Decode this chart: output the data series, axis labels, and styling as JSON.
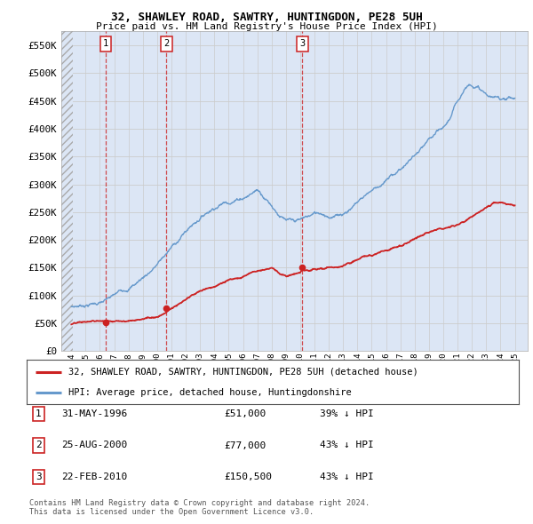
{
  "title1": "32, SHAWLEY ROAD, SAWTRY, HUNTINGDON, PE28 5UH",
  "title2": "Price paid vs. HM Land Registry's House Price Index (HPI)",
  "ylim": [
    0,
    575000
  ],
  "yticks": [
    0,
    50000,
    100000,
    150000,
    200000,
    250000,
    300000,
    350000,
    400000,
    450000,
    500000,
    550000
  ],
  "ytick_labels": [
    "£0",
    "£50K",
    "£100K",
    "£150K",
    "£200K",
    "£250K",
    "£300K",
    "£350K",
    "£400K",
    "£450K",
    "£500K",
    "£550K"
  ],
  "hpi_color": "#6699cc",
  "sale_color": "#cc2222",
  "grid_color": "#cccccc",
  "bg_color": "#ffffff",
  "plot_bg": "#dce6f5",
  "legend_line1": "32, SHAWLEY ROAD, SAWTRY, HUNTINGDON, PE28 5UH (detached house)",
  "legend_line2": "HPI: Average price, detached house, Huntingdonshire",
  "sale_years": [
    1996.42,
    2000.65,
    2010.15
  ],
  "sale_prices": [
    51000,
    77000,
    150500
  ],
  "sale_labels": [
    "1",
    "2",
    "3"
  ],
  "table": [
    {
      "num": "1",
      "date": "31-MAY-1996",
      "price": "£51,000",
      "note": "39% ↓ HPI"
    },
    {
      "num": "2",
      "date": "25-AUG-2000",
      "price": "£77,000",
      "note": "43% ↓ HPI"
    },
    {
      "num": "3",
      "date": "22-FEB-2010",
      "price": "£150,500",
      "note": "43% ↓ HPI"
    }
  ],
  "footer": "Contains HM Land Registry data © Crown copyright and database right 2024.\nThis data is licensed under the Open Government Licence v3.0.",
  "hpi_knots_x": [
    1994.0,
    1994.5,
    1995.0,
    1995.5,
    1996.0,
    1996.5,
    1997.0,
    1997.5,
    1998.0,
    1998.5,
    1999.0,
    1999.5,
    2000.0,
    2000.5,
    2001.0,
    2001.5,
    2002.0,
    2002.5,
    2003.0,
    2003.5,
    2004.0,
    2004.5,
    2005.0,
    2005.5,
    2006.0,
    2006.5,
    2007.0,
    2007.5,
    2008.0,
    2008.5,
    2009.0,
    2009.5,
    2010.0,
    2010.5,
    2011.0,
    2011.5,
    2012.0,
    2012.5,
    2013.0,
    2013.5,
    2014.0,
    2014.5,
    2015.0,
    2015.5,
    2016.0,
    2016.5,
    2017.0,
    2017.5,
    2018.0,
    2018.5,
    2019.0,
    2019.5,
    2020.0,
    2020.5,
    2021.0,
    2021.5,
    2022.0,
    2022.5,
    2023.0,
    2023.5,
    2024.0,
    2024.5,
    2025.0
  ],
  "hpi_knots_y": [
    80000,
    82000,
    85000,
    88000,
    90000,
    93000,
    98000,
    105000,
    113000,
    122000,
    133000,
    145000,
    158000,
    172000,
    186000,
    200000,
    215000,
    228000,
    241000,
    253000,
    264000,
    272000,
    278000,
    283000,
    289000,
    296000,
    305000,
    295000,
    282000,
    268000,
    255000,
    248000,
    248000,
    252000,
    256000,
    258000,
    256000,
    256000,
    262000,
    272000,
    285000,
    297000,
    308000,
    317000,
    325000,
    334000,
    345000,
    357000,
    368000,
    377000,
    387000,
    395000,
    399000,
    418000,
    445000,
    472000,
    483000,
    476000,
    462000,
    454000,
    452000,
    457000,
    455000
  ],
  "sale_knots_x": [
    1994.0,
    1995.0,
    1996.0,
    1996.42,
    1997.0,
    1998.0,
    1999.0,
    2000.0,
    2000.65,
    2001.0,
    2002.0,
    2003.0,
    2004.0,
    2005.0,
    2006.0,
    2007.0,
    2008.0,
    2009.0,
    2010.0,
    2010.15,
    2011.0,
    2012.0,
    2013.0,
    2014.0,
    2015.0,
    2016.0,
    2017.0,
    2018.0,
    2019.0,
    2020.0,
    2021.0,
    2022.0,
    2023.0,
    2023.5,
    2024.0,
    2024.5,
    2025.0
  ],
  "sale_knots_y": [
    48000,
    49500,
    50500,
    51000,
    53000,
    56000,
    60000,
    66000,
    77000,
    83000,
    95000,
    108000,
    118000,
    127000,
    136000,
    148000,
    158000,
    142000,
    148000,
    150500,
    150000,
    152000,
    155000,
    162000,
    170000,
    180000,
    192000,
    205000,
    215000,
    225000,
    235000,
    248000,
    265000,
    272000,
    270000,
    265000,
    262000
  ]
}
